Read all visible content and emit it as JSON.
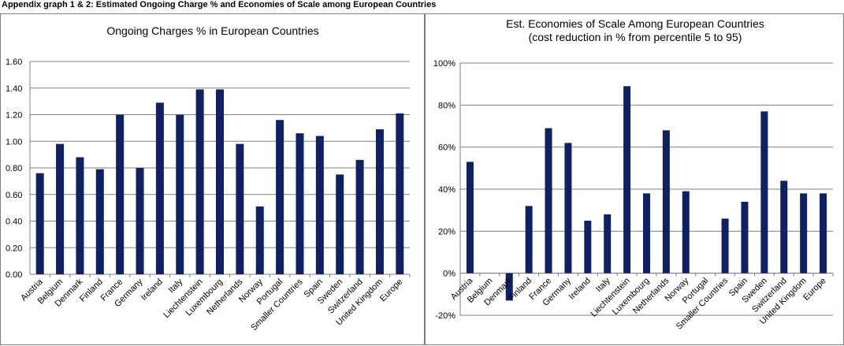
{
  "page_heading": "Appendix graph 1 & 2: Estimated Ongoing Charge % and Economies of Scale among European Countries",
  "chart_data": [
    {
      "type": "bar",
      "title": "Ongoing Charges % in European Countries",
      "subtitle": "",
      "xlabel": "",
      "ylabel": "",
      "categories": [
        "Austria",
        "Belgium",
        "Denmark",
        "Finland",
        "France",
        "Germany",
        "Ireland",
        "Italy",
        "Liechtenstein",
        "Luxembourg",
        "Netherlands",
        "Norway",
        "Portugal",
        "Smaller Countries",
        "Spain",
        "Sweden",
        "Switzerland",
        "United Kingdom",
        "Europe"
      ],
      "values": [
        0.76,
        0.98,
        0.88,
        0.79,
        1.2,
        0.8,
        1.29,
        1.2,
        1.39,
        1.39,
        0.98,
        0.51,
        1.16,
        1.06,
        1.04,
        0.75,
        0.86,
        1.09,
        1.21
      ],
      "ylim": [
        0,
        1.6
      ],
      "yticks": [
        "0.00",
        "0.20",
        "0.40",
        "0.60",
        "0.80",
        "1.00",
        "1.20",
        "1.40",
        "1.60"
      ],
      "grid": true,
      "bar_color": "#0f2063"
    },
    {
      "type": "bar",
      "title": "Est. Economies of Scale Among European Countries",
      "subtitle": "(cost reduction in % from percentile 5 to 95)",
      "xlabel": "",
      "ylabel": "",
      "categories": [
        "Austria",
        "Belgium",
        "Denmark",
        "Finland",
        "France",
        "Germany",
        "Ireland",
        "Italy",
        "Liechtenstein",
        "Luxembourg",
        "Netherlands",
        "Norway",
        "Portugal",
        "Smaller Countries",
        "Spain",
        "Sweden",
        "Switzerland",
        "United Kingdom",
        "Europe"
      ],
      "values": [
        53,
        0,
        -13,
        32,
        69,
        62,
        25,
        28,
        89,
        38,
        68,
        39,
        0,
        26,
        34,
        77,
        44,
        38,
        38
      ],
      "value_unit": "%",
      "ylim": [
        -20,
        100
      ],
      "yticks": [
        "-20%",
        "0%",
        "20%",
        "40%",
        "60%",
        "80%",
        "100%"
      ],
      "grid": true,
      "bar_color": "#0f2063"
    }
  ]
}
